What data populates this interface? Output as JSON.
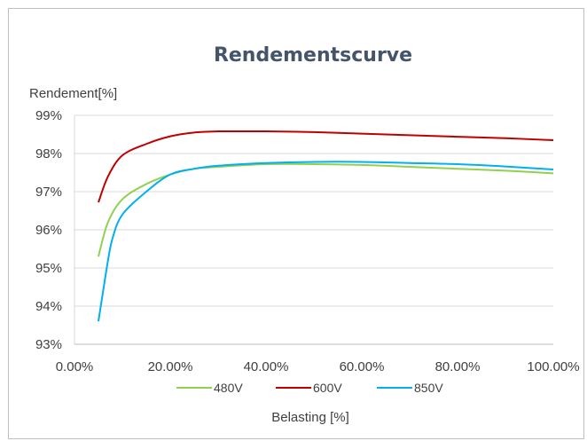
{
  "chart_data": {
    "type": "line",
    "title": "Rendementscurve",
    "ylabel": "Rendement[%]",
    "xlabel": "Belasting  [%]",
    "xlim": [
      0,
      100
    ],
    "ylim": [
      93,
      99
    ],
    "x_ticks": [
      "0.00%",
      "20.00%",
      "40.00%",
      "60.00%",
      "80.00%",
      "100.00%"
    ],
    "y_ticks": [
      "93%",
      "94%",
      "95%",
      "96%",
      "97%",
      "98%",
      "99%"
    ],
    "grid": "horizontal",
    "legend_position": "bottom",
    "series": [
      {
        "name": "480V",
        "color": "#92d050",
        "x": [
          5,
          7,
          10,
          15,
          20,
          25,
          30,
          40,
          50,
          60,
          70,
          80,
          90,
          100
        ],
        "y": [
          95.3,
          96.2,
          96.8,
          97.2,
          97.45,
          97.6,
          97.65,
          97.72,
          97.72,
          97.7,
          97.65,
          97.6,
          97.55,
          97.48
        ]
      },
      {
        "name": "600V",
        "color": "#c00000",
        "x": [
          5,
          7,
          10,
          15,
          20,
          25,
          30,
          35,
          40,
          50,
          60,
          70,
          80,
          90,
          100
        ],
        "y": [
          96.72,
          97.4,
          97.95,
          98.25,
          98.45,
          98.55,
          98.58,
          98.58,
          98.58,
          98.56,
          98.52,
          98.48,
          98.44,
          98.4,
          98.35
        ]
      },
      {
        "name": "850V",
        "color": "#00b0f0",
        "x": [
          5,
          7,
          8,
          10,
          15,
          20,
          25,
          30,
          40,
          50,
          60,
          70,
          80,
          90,
          100
        ],
        "y": [
          93.6,
          95.2,
          95.8,
          96.4,
          97.0,
          97.45,
          97.6,
          97.68,
          97.75,
          97.78,
          97.78,
          97.75,
          97.72,
          97.66,
          97.58
        ]
      }
    ]
  }
}
